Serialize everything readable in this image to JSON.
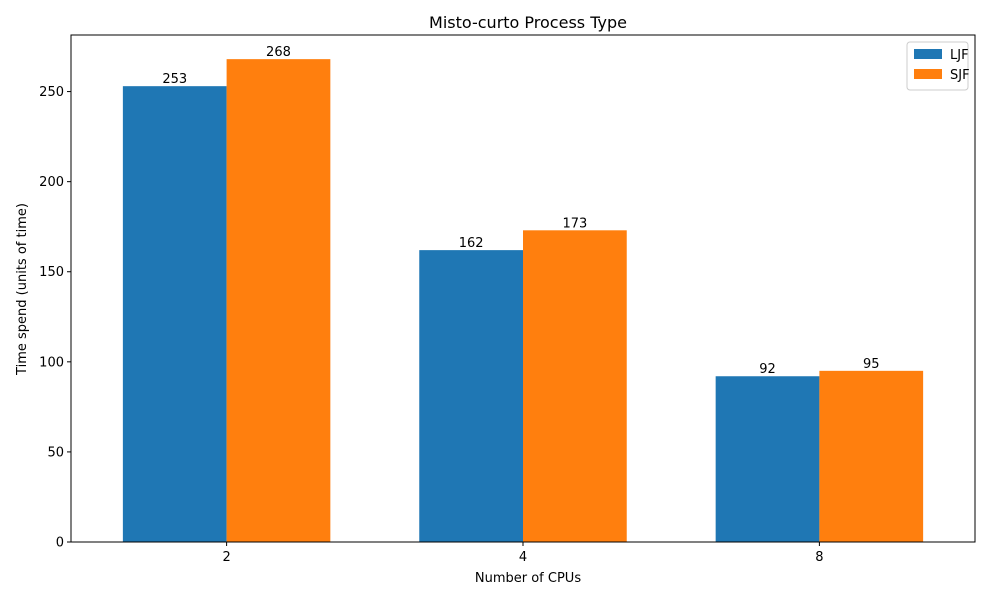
{
  "chart_data": {
    "type": "bar",
    "title": "Misto-curto Process Type",
    "xlabel": "Number of CPUs",
    "ylabel": "Time spend (units of time)",
    "categories": [
      "2",
      "4",
      "8"
    ],
    "series": [
      {
        "name": "LJF",
        "values": [
          253,
          162,
          92
        ],
        "color": "#1f77b4"
      },
      {
        "name": "SJF",
        "values": [
          268,
          173,
          95
        ],
        "color": "#ff7f0e"
      }
    ],
    "ylim": [
      0,
      281.4
    ],
    "yticks": [
      0,
      50,
      100,
      150,
      200,
      250
    ],
    "grid": false,
    "legend_position": "top-right"
  }
}
